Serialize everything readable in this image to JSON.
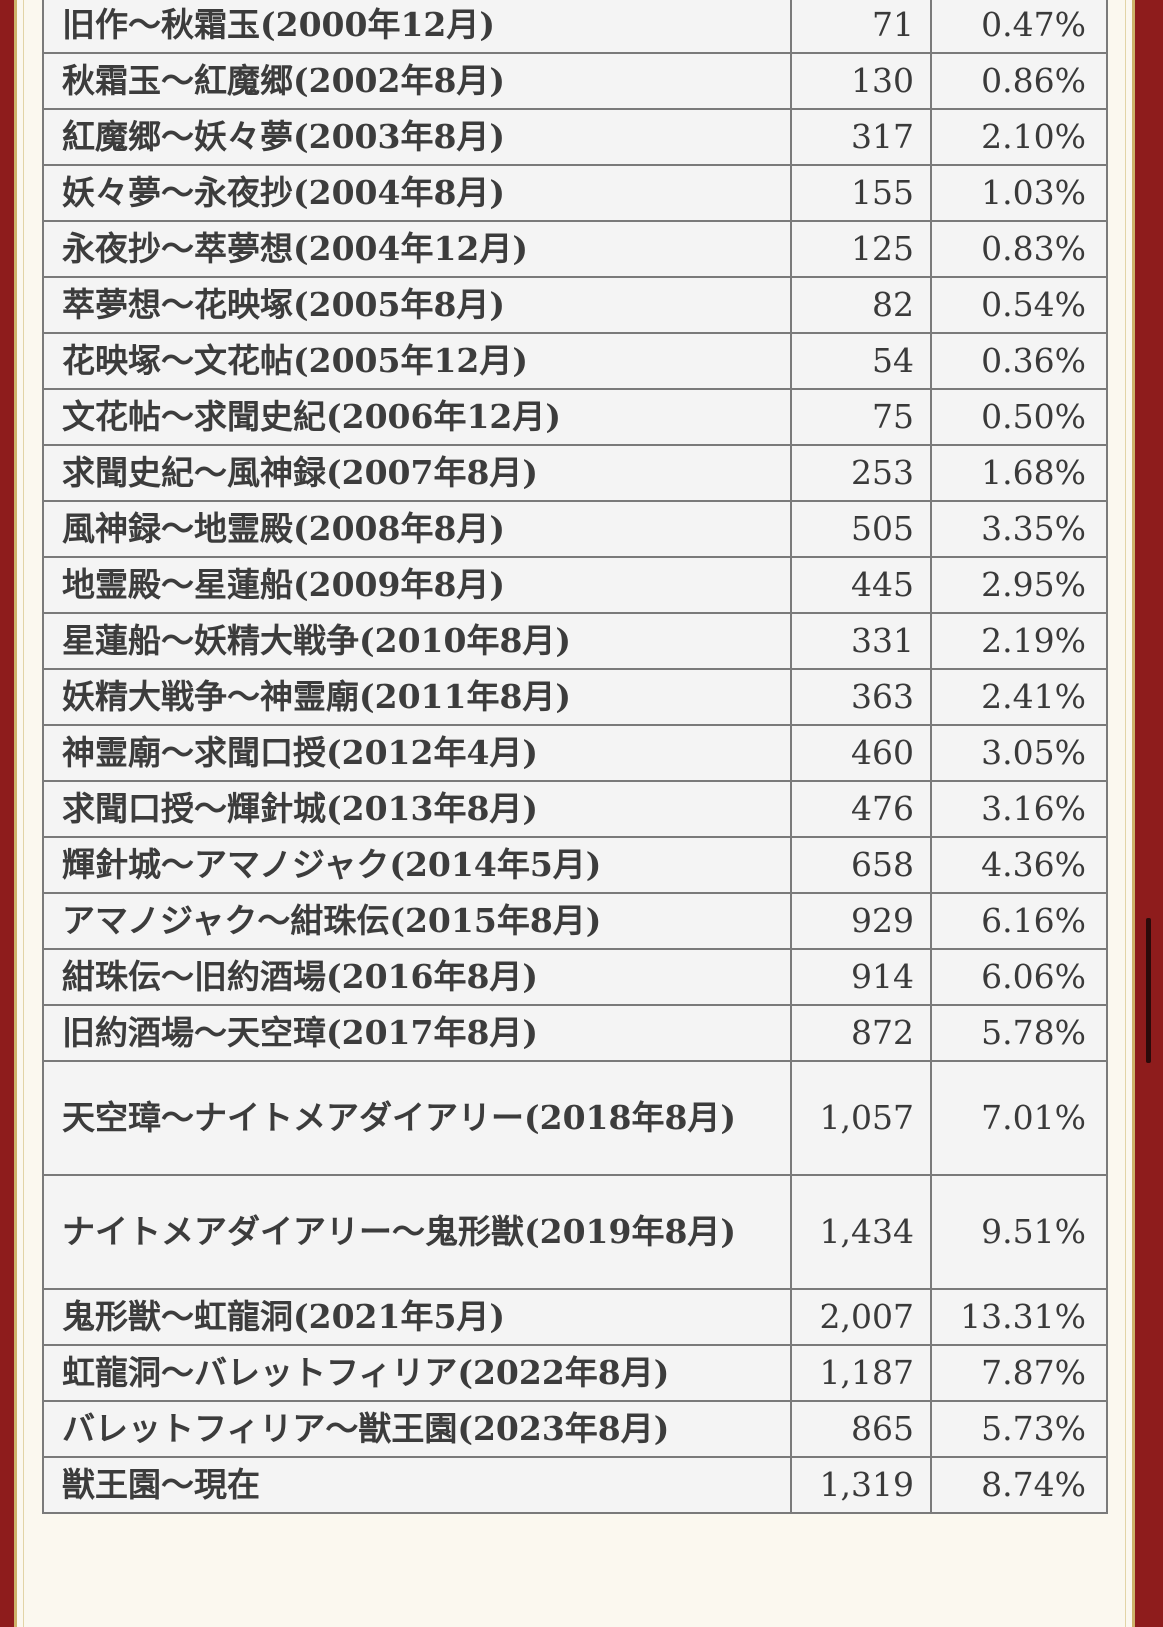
{
  "table": {
    "rows": [
      {
        "period": "旧作〜秋霜玉(2000年12月)",
        "count": "71",
        "share": "0.47%"
      },
      {
        "period": "秋霜玉〜紅魔郷(2002年8月)",
        "count": "130",
        "share": "0.86%"
      },
      {
        "period": "紅魔郷〜妖々夢(2003年8月)",
        "count": "317",
        "share": "2.10%"
      },
      {
        "period": "妖々夢〜永夜抄(2004年8月)",
        "count": "155",
        "share": "1.03%"
      },
      {
        "period": "永夜抄〜萃夢想(2004年12月)",
        "count": "125",
        "share": "0.83%"
      },
      {
        "period": "萃夢想〜花映塚(2005年8月)",
        "count": "82",
        "share": "0.54%"
      },
      {
        "period": "花映塚〜文花帖(2005年12月)",
        "count": "54",
        "share": "0.36%"
      },
      {
        "period": "文花帖〜求聞史紀(2006年12月)",
        "count": "75",
        "share": "0.50%"
      },
      {
        "period": "求聞史紀〜風神録(2007年8月)",
        "count": "253",
        "share": "1.68%"
      },
      {
        "period": "風神録〜地霊殿(2008年8月)",
        "count": "505",
        "share": "3.35%"
      },
      {
        "period": "地霊殿〜星蓮船(2009年8月)",
        "count": "445",
        "share": "2.95%"
      },
      {
        "period": "星蓮船〜妖精大戦争(2010年8月)",
        "count": "331",
        "share": "2.19%"
      },
      {
        "period": "妖精大戦争〜神霊廟(2011年8月)",
        "count": "363",
        "share": "2.41%"
      },
      {
        "period": "神霊廟〜求聞口授(2012年4月)",
        "count": "460",
        "share": "3.05%"
      },
      {
        "period": "求聞口授〜輝針城(2013年8月)",
        "count": "476",
        "share": "3.16%"
      },
      {
        "period": "輝針城〜アマノジャク(2014年5月)",
        "count": "658",
        "share": "4.36%"
      },
      {
        "period": "アマノジャク〜紺珠伝(2015年8月)",
        "count": "929",
        "share": "6.16%"
      },
      {
        "period": "紺珠伝〜旧約酒場(2016年8月)",
        "count": "914",
        "share": "6.06%"
      },
      {
        "period": "旧約酒場〜天空璋(2017年8月)",
        "count": "872",
        "share": "5.78%"
      },
      {
        "period": "天空璋〜ナイトメアダイアリー(2018年8月)",
        "count": "1,057",
        "share": "7.01%"
      },
      {
        "period": "ナイトメアダイアリー〜鬼形獣(2019年8月)",
        "count": "1,434",
        "share": "9.51%"
      },
      {
        "period": "鬼形獣〜虹龍洞(2021年5月)",
        "count": "2,007",
        "share": "13.31%"
      },
      {
        "period": "虹龍洞〜バレットフィリア(2022年8月)",
        "count": "1,187",
        "share": "7.87%"
      },
      {
        "period": "バレットフィリア〜獣王園(2023年8月)",
        "count": "865",
        "share": "5.73%"
      },
      {
        "period": "獣王園〜現在",
        "count": "1,319",
        "share": "8.74%"
      }
    ]
  }
}
